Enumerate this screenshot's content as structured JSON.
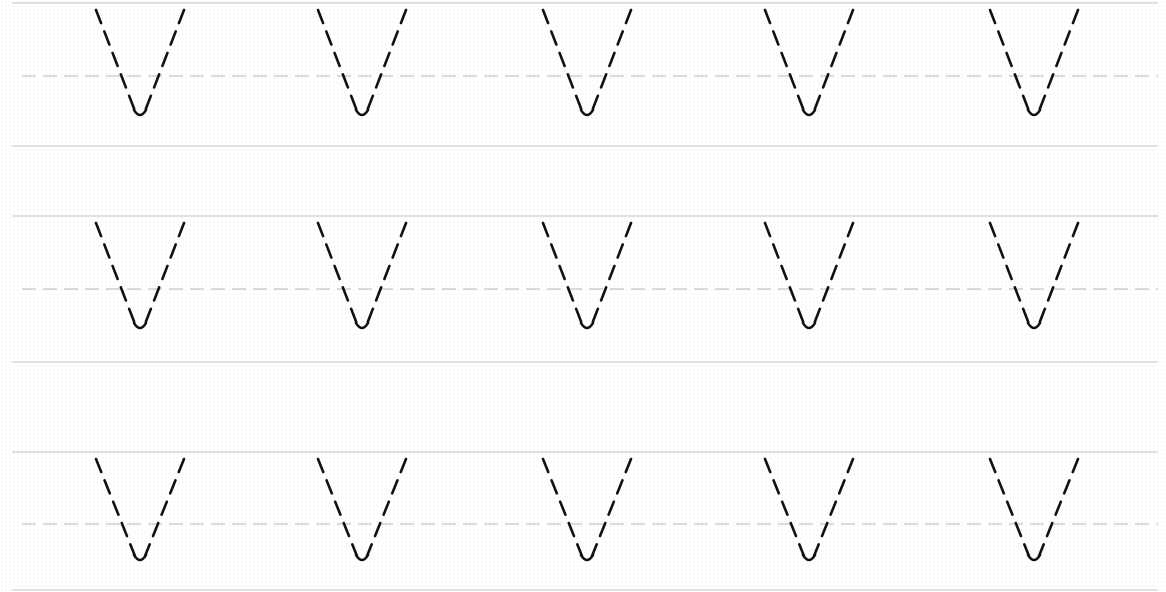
{
  "worksheet": {
    "letter": "v",
    "row_count": 3,
    "letters_per_row": 5,
    "colors": {
      "ruling": "#d7d7d7",
      "midline": "#cfcfcf",
      "letter": "#111111",
      "background": "#ffffff"
    }
  }
}
